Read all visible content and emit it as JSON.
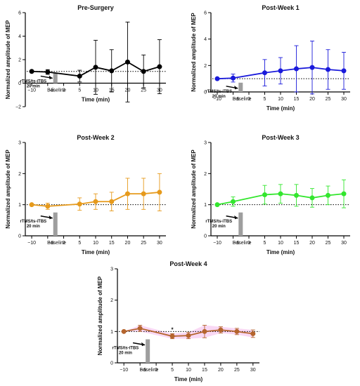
{
  "chart_data": [
    {
      "type": "line",
      "title": "Pre-Surgery",
      "xlabel": "Time (min)",
      "ylabel": "Normalized amplitude of  MEP",
      "color": "#000000",
      "band": false,
      "ylim": [
        -2,
        6
      ],
      "yticks": [
        -2,
        0,
        2,
        4,
        6
      ],
      "baseline": 1,
      "x": [
        -10,
        -5,
        5,
        10,
        15,
        20,
        25,
        30
      ],
      "y": [
        1.0,
        0.95,
        0.6,
        1.35,
        1.05,
        1.8,
        1.0,
        1.4
      ],
      "err": [
        0.0,
        0.2,
        0.5,
        2.3,
        1.8,
        3.4,
        1.4,
        2.3
      ],
      "bar_label": "rTMS/ts-iTBS",
      "bar_label2": "20 min",
      "baseline_label": "Baseline",
      "stim_bar": 0.9,
      "annotation": ""
    },
    {
      "type": "line",
      "title": "Post-Week 1",
      "xlabel": "Time (min)",
      "ylabel": "Normalized amplitude of  MEP",
      "color": "#1a1adb",
      "band": false,
      "ylim": [
        0,
        6
      ],
      "yticks": [
        0,
        2,
        4,
        6
      ],
      "baseline": 1,
      "x": [
        -10,
        -5,
        5,
        10,
        15,
        20,
        25,
        30
      ],
      "y": [
        1.0,
        1.05,
        1.45,
        1.6,
        1.75,
        1.85,
        1.7,
        1.6
      ],
      "err": [
        0.0,
        0.3,
        1.0,
        1.0,
        1.75,
        2.0,
        1.5,
        1.4
      ],
      "bar_label": "rTMS/ts-iTBS",
      "bar_label2": "20 min",
      "baseline_label": "Baseline",
      "stim_bar": 0.7,
      "annotation": ""
    },
    {
      "type": "line",
      "title": "Post-Week 2",
      "xlabel": "Time (min)",
      "ylabel": "Normalized amplitude of  MEP",
      "color": "#e69a1c",
      "band": false,
      "ylim": [
        0,
        3
      ],
      "yticks": [
        0,
        1,
        2,
        3
      ],
      "baseline": 1,
      "x": [
        -10,
        -5,
        5,
        10,
        15,
        20,
        25,
        30
      ],
      "y": [
        1.0,
        0.95,
        1.02,
        1.1,
        1.1,
        1.35,
        1.35,
        1.4
      ],
      "err": [
        0.0,
        0.1,
        0.2,
        0.25,
        0.3,
        0.5,
        0.5,
        0.6
      ],
      "bar_label": "rTMS/ts-iTBS",
      "bar_label2": "20 min",
      "baseline_label": "Baseline",
      "stim_bar": 0.75,
      "annotation": ""
    },
    {
      "type": "line",
      "title": "Post-Week 3",
      "xlabel": "Time (min)",
      "ylabel": "Normalized amplitude of  MEP",
      "color": "#33e62e",
      "band": false,
      "ylim": [
        0,
        3
      ],
      "yticks": [
        0,
        1,
        2,
        3
      ],
      "baseline": 1,
      "x": [
        -10,
        -5,
        5,
        10,
        15,
        20,
        25,
        30
      ],
      "y": [
        1.0,
        1.1,
        1.32,
        1.35,
        1.3,
        1.22,
        1.3,
        1.35
      ],
      "err": [
        0.0,
        0.15,
        0.3,
        0.3,
        0.35,
        0.3,
        0.3,
        0.45
      ],
      "bar_label": "rTMS/ts-iTBS",
      "bar_label2": "20 min",
      "baseline_label": "Baseline",
      "stim_bar": 0.75,
      "annotation": ""
    },
    {
      "type": "line",
      "title": "Post-Week 4",
      "xlabel": "Time (min)",
      "ylabel": "Normalized amplitude of  MEP",
      "color": "#b5652e",
      "band": true,
      "ylim": [
        0,
        3
      ],
      "yticks": [
        0,
        1,
        2,
        3
      ],
      "baseline": 1,
      "x": [
        -10,
        -5,
        5,
        10,
        15,
        20,
        25,
        30
      ],
      "y": [
        1.0,
        1.1,
        0.85,
        0.87,
        1.0,
        1.05,
        1.0,
        0.93
      ],
      "err": [
        0.0,
        0.1,
        0.08,
        0.1,
        0.2,
        0.1,
        0.1,
        0.12
      ],
      "bar_label": "rTMS/ts-iTBS",
      "bar_label2": "20 min",
      "baseline_label": "Baseline",
      "stim_bar": 0.75,
      "annotation": "*",
      "annotation_x": 5
    }
  ],
  "colors": {
    "baseline_line": "#000000",
    "stim_bar": "#9e9e9e",
    "band_fill": "#f7c8f0"
  }
}
